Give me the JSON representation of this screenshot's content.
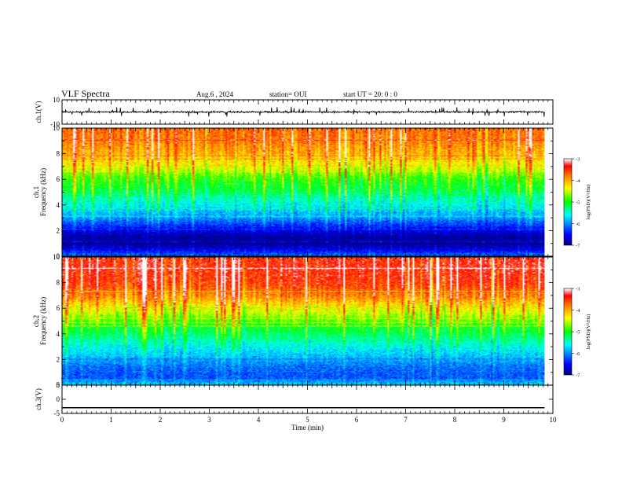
{
  "header": {
    "title": "VLF Spectra",
    "date": "Aug.6   , 2024",
    "station": "station= OUI",
    "start": "start  UT  =    20: 0   : 0"
  },
  "chart_data": [
    {
      "type": "line",
      "panel": "ch1-waveform",
      "ylabel": "ch.1(V)",
      "ylim": [
        -10,
        10
      ],
      "yticks": [
        10,
        -10
      ],
      "x_range": [
        0,
        10
      ],
      "series": [
        {
          "baseline": 0,
          "noise_amplitude": 1.5,
          "spike_amplitude": 4,
          "end_x": 9.83
        }
      ],
      "color": "#000000"
    },
    {
      "type": "heatmap",
      "panel": "ch1-spectrogram",
      "ylabel": "ch.1",
      "ylabel2": "Frequency  (kHz)",
      "ylim": [
        0,
        10
      ],
      "yticks": [
        0,
        2,
        4,
        6,
        8,
        10
      ],
      "x_range": [
        0,
        10
      ],
      "data_end_x": 9.83,
      "level_profile_freq_khz": [
        0,
        0.5,
        1.0,
        1.5,
        2.0,
        2.5,
        3.0,
        3.5,
        4.0,
        5.0,
        6.0,
        7.0,
        8.0,
        9.0,
        10.0
      ],
      "level_profile_log_psd": [
        -6.1,
        -6.6,
        -6.9,
        -6.9,
        -6.6,
        -6.3,
        -6.0,
        -5.8,
        -5.6,
        -5.2,
        -4.9,
        -4.4,
        -4.0,
        -3.8,
        -3.7
      ],
      "colorbar": {
        "min": -7,
        "max": -3,
        "ticks": [
          -3,
          -4,
          -5,
          -6,
          -7
        ],
        "label": "log(PSD)(V²/Hz)"
      }
    },
    {
      "type": "heatmap",
      "panel": "ch2-spectrogram",
      "ylabel": "ch.2",
      "ylabel2": "Frequency  (kHz)",
      "ylim": [
        0,
        10
      ],
      "yticks": [
        0,
        2,
        4,
        6,
        8,
        10
      ],
      "x_range": [
        0,
        10
      ],
      "data_end_x": 9.83,
      "level_profile_freq_khz": [
        0,
        0.5,
        1.0,
        1.5,
        2.0,
        3.0,
        4.0,
        5.0,
        6.0,
        7.0,
        8.0,
        9.0,
        10.0
      ],
      "level_profile_log_psd": [
        -5.7,
        -6.2,
        -6.2,
        -6.1,
        -5.9,
        -5.6,
        -5.2,
        -4.8,
        -4.3,
        -3.8,
        -3.5,
        -3.4,
        -3.4
      ],
      "colorbar": {
        "min": -7,
        "max": -3,
        "ticks": [
          -3,
          -4,
          -5,
          -6,
          -7
        ],
        "label": "log(PSD)(V²/Hz)"
      }
    },
    {
      "type": "line",
      "panel": "ch3-waveform",
      "ylabel": "ch.3(V)",
      "ylim": [
        -5,
        5
      ],
      "yticks": [
        5,
        0,
        -5
      ],
      "x_range": [
        0,
        10
      ],
      "series": [
        {
          "value": -3.0,
          "end_x": 9.83
        }
      ],
      "color": "#000000"
    }
  ],
  "xaxis": {
    "label": "Time  (min)",
    "range": [
      0,
      10
    ],
    "ticks": [
      "0",
      "1",
      "2",
      "3",
      "4",
      "5",
      "6",
      "7",
      "8",
      "9",
      "10"
    ]
  },
  "colormap": [
    "#00007f",
    "#0000ff",
    "#00ffff",
    "#00ff00",
    "#ffff00",
    "#ff8000",
    "#ff0000",
    "#ffffff"
  ]
}
